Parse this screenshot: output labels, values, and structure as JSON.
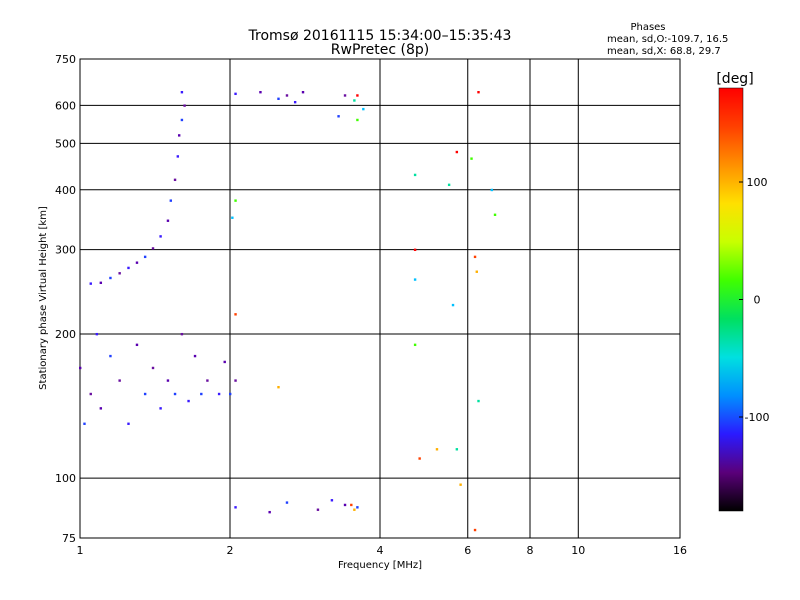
{
  "header": {
    "title_line1": "Tromsø 20161115 15:34:00–15:35:43",
    "title_line2": "RwPretec (8p)",
    "stats_heading": "Phases",
    "stats_o": "mean, sd,O:-109.7, 16.5",
    "stats_x": "mean, sd,X:  68.8, 29.7"
  },
  "chart_data": {
    "type": "scatter",
    "title": "Tromsø 20161115 15:34:00–15:35:43",
    "subtitle": "RwPretec (8p)",
    "xlabel": "Frequency [MHz]",
    "ylabel": "Stationary phase Virtual Height [km]",
    "x_scale": "log",
    "y_scale": "log",
    "xlim": [
      1,
      16
    ],
    "ylim": [
      75,
      750
    ],
    "x_ticks": [
      1,
      2,
      4,
      6,
      8,
      10,
      16
    ],
    "x_tick_labels": [
      "1",
      "2",
      "4",
      "6",
      "8",
      "10",
      "16"
    ],
    "y_ticks": [
      75,
      100,
      200,
      300,
      400,
      500,
      600,
      750
    ],
    "y_tick_labels": [
      "75",
      "100",
      "200",
      "300",
      "400",
      "500",
      "600",
      "750"
    ],
    "grid": true,
    "colorbar": {
      "label": "[deg]",
      "range": [
        -180,
        180
      ],
      "ticks": [
        100,
        0,
        -100
      ],
      "tick_labels": [
        "100",
        "0",
        "-100"
      ],
      "colors": [
        "#000000",
        "#5a007a",
        "#2a1aff",
        "#0090ff",
        "#00e0e0",
        "#00e060",
        "#40ff00",
        "#c8ff00",
        "#ffe000",
        "#ff9000",
        "#ff4000",
        "#ff0000"
      ]
    },
    "series": [
      {
        "points": [
          [
            1.05,
            255
          ],
          [
            1.1,
            256
          ],
          [
            1.15,
            262
          ],
          [
            1.2,
            268
          ],
          [
            1.25,
            275
          ],
          [
            1.3,
            282
          ],
          [
            1.35,
            290
          ],
          [
            1.4,
            302
          ],
          [
            1.45,
            320
          ],
          [
            1.5,
            345
          ],
          [
            1.52,
            380
          ],
          [
            1.55,
            420
          ],
          [
            1.57,
            470
          ],
          [
            1.58,
            520
          ],
          [
            1.6,
            560
          ],
          [
            1.62,
            600
          ],
          [
            1.6,
            640
          ],
          [
            1.0,
            170
          ],
          [
            1.02,
            130
          ],
          [
            1.05,
            150
          ],
          [
            1.08,
            200
          ],
          [
            1.1,
            140
          ],
          [
            1.15,
            180
          ],
          [
            1.2,
            160
          ],
          [
            1.25,
            130
          ],
          [
            1.3,
            190
          ],
          [
            1.35,
            150
          ],
          [
            1.4,
            170
          ],
          [
            1.45,
            140
          ],
          [
            1.5,
            160
          ],
          [
            1.55,
            150
          ],
          [
            1.6,
            200
          ],
          [
            1.65,
            145
          ],
          [
            1.7,
            180
          ],
          [
            1.75,
            150
          ],
          [
            1.8,
            160
          ],
          [
            1.9,
            150
          ],
          [
            1.95,
            175
          ],
          [
            2.0,
            150
          ],
          [
            2.05,
            160
          ],
          [
            2.05,
            635
          ],
          [
            2.3,
            640
          ],
          [
            2.5,
            620
          ],
          [
            2.6,
            630
          ],
          [
            2.7,
            610
          ],
          [
            2.8,
            640
          ],
          [
            3.3,
            570
          ],
          [
            3.4,
            630
          ],
          [
            2.05,
            87
          ],
          [
            2.4,
            85
          ],
          [
            2.6,
            89
          ],
          [
            3.0,
            86
          ],
          [
            3.2,
            90
          ],
          [
            3.4,
            88
          ],
          [
            3.6,
            87
          ]
        ]
      },
      {
        "points": [
          [
            2.02,
            350
          ],
          [
            2.05,
            380
          ],
          [
            2.05,
            220
          ],
          [
            2.5,
            155
          ],
          [
            3.55,
            615
          ],
          [
            3.6,
            630
          ],
          [
            3.7,
            590
          ],
          [
            3.6,
            560
          ],
          [
            3.5,
            88
          ],
          [
            3.55,
            86
          ],
          [
            4.7,
            430
          ],
          [
            4.7,
            300
          ],
          [
            4.7,
            260
          ],
          [
            4.7,
            190
          ],
          [
            4.8,
            110
          ],
          [
            5.2,
            115
          ],
          [
            5.5,
            410
          ],
          [
            5.7,
            480
          ],
          [
            5.6,
            230
          ],
          [
            6.1,
            465
          ],
          [
            6.2,
            290
          ],
          [
            6.25,
            270
          ],
          [
            6.3,
            145
          ],
          [
            6.3,
            640
          ],
          [
            6.7,
            400
          ],
          [
            6.8,
            355
          ],
          [
            6.2,
            78
          ],
          [
            5.8,
            97
          ],
          [
            5.7,
            115
          ]
        ]
      }
    ]
  }
}
